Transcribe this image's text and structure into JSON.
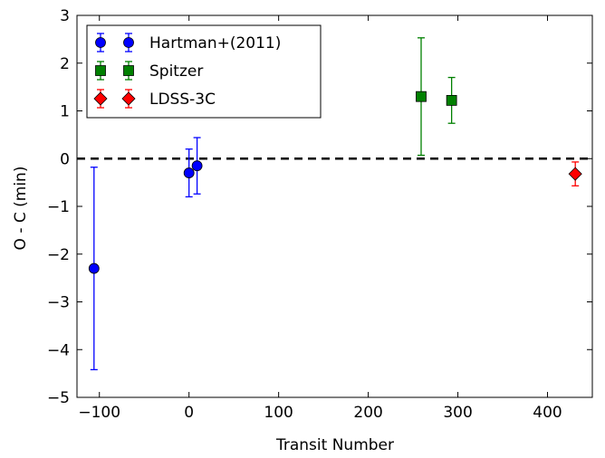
{
  "chart_data": {
    "type": "scatter",
    "title": "",
    "xlabel": "Transit Number",
    "ylabel": "O - C (min)",
    "xlim": [
      -125,
      450
    ],
    "ylim": [
      -5,
      3
    ],
    "xticks": [
      -100,
      0,
      100,
      200,
      300,
      400
    ],
    "yticks": [
      -5,
      -4,
      -3,
      -2,
      -1,
      0,
      1,
      2,
      3
    ],
    "xtick_labels": [
      "−100",
      "0",
      "100",
      "200",
      "300",
      "400"
    ],
    "ytick_labels": [
      "−5",
      "−4",
      "−3",
      "−2",
      "−1",
      "0",
      "1",
      "2",
      "3"
    ],
    "grid": false,
    "legend_position": "top-left",
    "reference_line": {
      "y": 0,
      "style": "dashed",
      "color": "#000000"
    },
    "series": [
      {
        "name": "Hartman+(2011)",
        "marker": "circle",
        "color": "#0000ff",
        "points": [
          {
            "x": -106,
            "y": -2.3,
            "yerr": 2.12
          },
          {
            "x": 0,
            "y": -0.3,
            "yerr": 0.5
          },
          {
            "x": 9,
            "y": -0.15,
            "yerr": 0.59
          }
        ]
      },
      {
        "name": "Spitzer",
        "marker": "square",
        "color": "#008000",
        "points": [
          {
            "x": 259,
            "y": 1.3,
            "yerr": 1.23
          },
          {
            "x": 293,
            "y": 1.22,
            "yerr": 0.48
          }
        ]
      },
      {
        "name": "LDSS-3C",
        "marker": "diamond",
        "color": "#ff0000",
        "points": [
          {
            "x": 431,
            "y": -0.32,
            "yerr": 0.25
          }
        ]
      }
    ]
  }
}
